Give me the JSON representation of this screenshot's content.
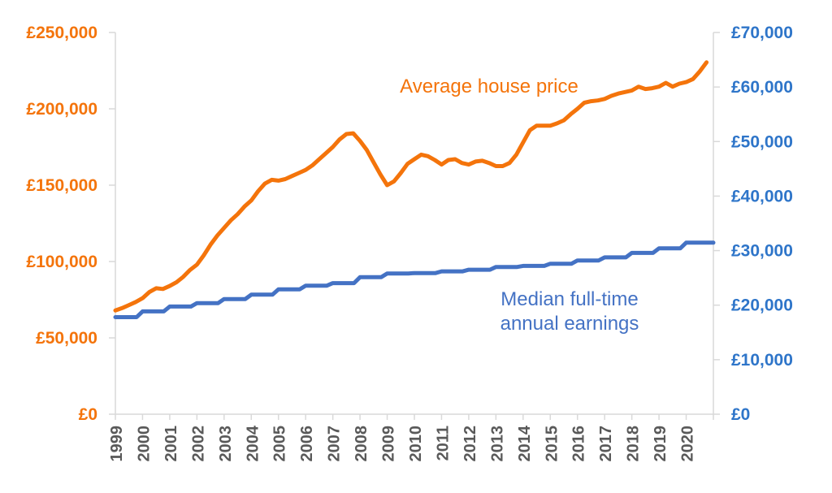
{
  "chart_data": {
    "type": "line",
    "title": "",
    "x_axis": {
      "min": 1999,
      "max": 2021,
      "tick_years": [
        "1999",
        "2000",
        "2001",
        "2002",
        "2003",
        "2004",
        "2005",
        "2006",
        "2007",
        "2008",
        "2009",
        "2010",
        "2011",
        "2012",
        "2013",
        "2014",
        "2015",
        "2016",
        "2017",
        "2018",
        "2019",
        "2020"
      ],
      "tick_label_color": "#595959"
    },
    "y_axis_left": {
      "min": 0,
      "max": 250000,
      "color": "#F4740B",
      "ticks": [
        {
          "value": 0,
          "label": "£0"
        },
        {
          "value": 50000,
          "label": "£50,000"
        },
        {
          "value": 100000,
          "label": "£100,000"
        },
        {
          "value": 150000,
          "label": "£150,000"
        },
        {
          "value": 200000,
          "label": "£200,000"
        },
        {
          "value": 250000,
          "label": "£250,000"
        }
      ]
    },
    "y_axis_right": {
      "min": 0,
      "max": 70000,
      "color": "#2E75C9",
      "ticks": [
        {
          "value": 0,
          "label": "£0"
        },
        {
          "value": 10000,
          "label": "£10,000"
        },
        {
          "value": 20000,
          "label": "£20,000"
        },
        {
          "value": 30000,
          "label": "£30,000"
        },
        {
          "value": 40000,
          "label": "£40,000"
        },
        {
          "value": 50000,
          "label": "£50,000"
        },
        {
          "value": 60000,
          "label": "£60,000"
        },
        {
          "value": 70000,
          "label": "£70,000"
        }
      ]
    },
    "grid": false,
    "legend": "inline-annotations",
    "axis_line_color": "#D9D9D9",
    "series": [
      {
        "name": "Average house price",
        "color": "#F4740B",
        "axis": "left",
        "style": "line",
        "line_width": 5,
        "x_start": 1999,
        "x_step": 0.25,
        "values": [
          68000,
          69500,
          71500,
          73500,
          76000,
          80000,
          82500,
          82000,
          84000,
          86500,
          90000,
          94500,
          98000,
          104000,
          111000,
          117000,
          122000,
          127000,
          131000,
          136000,
          140000,
          146000,
          151000,
          153500,
          153000,
          154000,
          156000,
          158000,
          160000,
          163000,
          167000,
          171000,
          175000,
          180000,
          183500,
          184000,
          179000,
          173000,
          165000,
          157000,
          150000,
          152500,
          158000,
          164000,
          167000,
          170000,
          169000,
          166500,
          163500,
          166500,
          167000,
          164500,
          163500,
          165500,
          166000,
          164500,
          162500,
          162500,
          164500,
          170000,
          178000,
          186000,
          189000,
          189000,
          189000,
          190500,
          192500,
          196500,
          200000,
          204000,
          205000,
          205500,
          206500,
          208500,
          210000,
          211000,
          212000,
          214500,
          213000,
          213500,
          214500,
          217000,
          214500,
          216500,
          217500,
          219500,
          224500,
          230500
        ]
      },
      {
        "name": "Median full-time annual earnings",
        "color": "#4472C4",
        "axis": "right",
        "style": "step",
        "line_width": 5,
        "years": [
          1999,
          2000,
          2001,
          2002,
          2003,
          2004,
          2005,
          2006,
          2007,
          2008,
          2009,
          2010,
          2011,
          2012,
          2013,
          2014,
          2015,
          2016,
          2017,
          2018,
          2019,
          2020
        ],
        "values": [
          17803,
          18848,
          19748,
          20376,
          21124,
          21916,
          22888,
          23580,
          24043,
          25123,
          25806,
          25879,
          26200,
          26500,
          27000,
          27200,
          27600,
          28200,
          28758,
          29574,
          30420,
          31461
        ]
      }
    ],
    "annotations": [
      {
        "id": "label-average-house-price",
        "lines": [
          "Average house price"
        ],
        "x": 602,
        "y": 114,
        "color": "#F4740B"
      },
      {
        "id": "label-median-earnings",
        "lines": [
          "Median full-time",
          "annual earnings"
        ],
        "x": 701,
        "y": 376,
        "color": "#4472C4"
      }
    ]
  }
}
